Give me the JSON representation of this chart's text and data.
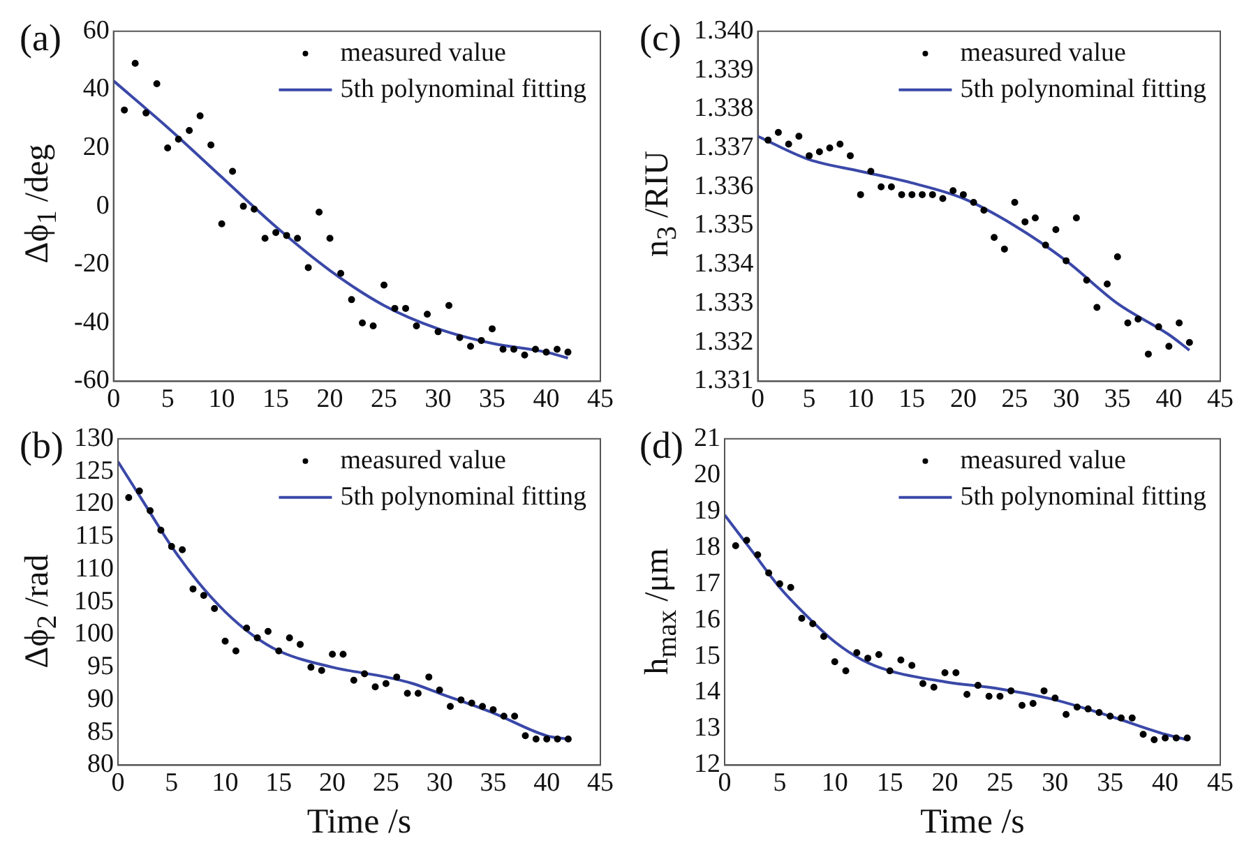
{
  "chart_data": [
    {
      "type": "scatter",
      "title": "(a)",
      "ylabel": "Δϕ$_{1}$ /deg",
      "xlim": [
        0,
        45
      ],
      "xticks": [
        0,
        5,
        10,
        15,
        20,
        25,
        30,
        35,
        40,
        45
      ],
      "ylim": [
        -60,
        60
      ],
      "yticks": [
        -60,
        -40,
        -20,
        0,
        20,
        40,
        60
      ],
      "grid": false,
      "legend": "top right",
      "series": [
        {
          "name": "measured value",
          "type": "scatter",
          "marker": "circle",
          "color": "#000000",
          "x": [
            1,
            2,
            3,
            4,
            5,
            6,
            7,
            8,
            9,
            10,
            11,
            12,
            13,
            14,
            15,
            16,
            17,
            18,
            19,
            20,
            21,
            22,
            23,
            24,
            25,
            26,
            27,
            28,
            29,
            30,
            31,
            32,
            33,
            34,
            35,
            36,
            37,
            38,
            39,
            40,
            41,
            42
          ],
          "values": [
            33,
            49,
            32,
            42,
            20,
            23,
            26,
            31,
            21,
            -6,
            12,
            0,
            -1,
            -11,
            -9,
            -10,
            -11,
            -21,
            -2,
            -11,
            -23,
            -32,
            -40,
            -41,
            -27,
            -35,
            -35,
            -41,
            -37,
            -43,
            -34,
            -45,
            -48,
            -46,
            -42,
            -49,
            -49,
            -51,
            -49,
            -50,
            -49,
            -50
          ]
        },
        {
          "name": "5th polynominal fitting",
          "type": "line",
          "marker": "none",
          "color": "#3a48a8",
          "x": [
            0,
            5,
            10,
            15,
            20,
            25,
            30,
            35,
            40,
            42
          ],
          "values": [
            43,
            27,
            10,
            -7,
            -22,
            -34,
            -42,
            -47,
            -50,
            -52
          ]
        }
      ]
    },
    {
      "type": "scatter",
      "title": "(c)",
      "ylabel": "n$_{3}$ /RIU",
      "xlim": [
        0,
        45
      ],
      "xticks": [
        0,
        5,
        10,
        15,
        20,
        25,
        30,
        35,
        40,
        45
      ],
      "ylim": [
        1.331,
        1.34
      ],
      "yticks": [
        1.331,
        1.332,
        1.333,
        1.334,
        1.335,
        1.336,
        1.337,
        1.338,
        1.339,
        {
          "value": 1.34,
          "label": "1.340"
        }
      ],
      "grid": false,
      "legend": "top right",
      "series": [
        {
          "name": "measured value",
          "type": "scatter",
          "marker": "circle",
          "color": "#000000",
          "x": [
            1,
            2,
            3,
            4,
            5,
            6,
            7,
            8,
            9,
            10,
            11,
            12,
            13,
            14,
            15,
            16,
            17,
            18,
            19,
            20,
            21,
            22,
            23,
            24,
            25,
            26,
            27,
            28,
            29,
            30,
            31,
            32,
            33,
            34,
            35,
            36,
            37,
            38,
            39,
            40,
            41,
            42
          ],
          "values": [
            1.3372,
            1.3374,
            1.3371,
            1.3373,
            1.3368,
            1.3369,
            1.337,
            1.3371,
            1.3368,
            1.3358,
            1.3364,
            1.336,
            1.336,
            1.3358,
            1.3358,
            1.3358,
            1.3358,
            1.3357,
            1.3359,
            1.3358,
            1.3356,
            1.3354,
            1.3347,
            1.3344,
            1.3356,
            1.3351,
            1.3352,
            1.3345,
            1.3349,
            1.3341,
            1.3352,
            1.3336,
            1.3329,
            1.3335,
            1.3342,
            1.3325,
            1.3326,
            1.3317,
            1.3324,
            1.3319,
            1.3325,
            1.332
          ]
        },
        {
          "name": "5th polynominal fitting",
          "type": "line",
          "marker": "none",
          "color": "#3a48a8",
          "x": [
            0,
            5,
            10,
            15,
            20,
            25,
            30,
            35,
            40,
            42
          ],
          "values": [
            1.3373,
            1.3367,
            1.3364,
            1.3361,
            1.3357,
            1.335,
            1.3341,
            1.333,
            1.3322,
            1.3318
          ]
        }
      ]
    },
    {
      "type": "scatter",
      "title": "(b)",
      "xlabel": "Time /s",
      "ylabel": "Δϕ$_{2}$ /rad",
      "xlim": [
        0,
        45
      ],
      "xticks": [
        0,
        5,
        10,
        15,
        20,
        25,
        30,
        35,
        40,
        45
      ],
      "ylim": [
        80,
        130
      ],
      "yticks": [
        80,
        85,
        90,
        95,
        100,
        105,
        110,
        115,
        120,
        125,
        130
      ],
      "grid": false,
      "legend": "top right",
      "series": [
        {
          "name": "measured value",
          "type": "scatter",
          "marker": "circle",
          "color": "#000000",
          "x": [
            1,
            2,
            3,
            4,
            5,
            6,
            7,
            8,
            9,
            10,
            11,
            12,
            13,
            14,
            15,
            16,
            17,
            18,
            19,
            20,
            21,
            22,
            23,
            24,
            25,
            26,
            27,
            28,
            29,
            30,
            31,
            32,
            33,
            34,
            35,
            36,
            37,
            38,
            39,
            40,
            41,
            42
          ],
          "values": [
            121,
            122,
            119,
            116,
            113.5,
            113,
            107,
            106,
            104,
            99,
            97.5,
            101,
            99.5,
            100.5,
            97.5,
            99.5,
            98.5,
            95,
            94.5,
            97,
            97,
            93,
            94,
            92,
            92.5,
            93.5,
            91,
            91,
            93.5,
            91.5,
            89,
            90,
            89.5,
            89,
            88.5,
            87.5,
            87.5,
            84.5,
            84,
            84,
            84,
            84
          ]
        },
        {
          "name": "5th polynominal fitting",
          "type": "line",
          "marker": "none",
          "color": "#3a48a8",
          "x": [
            0,
            2.5,
            5,
            7.5,
            10,
            12.5,
            15,
            20,
            25,
            27.5,
            30,
            35,
            40,
            42
          ],
          "values": [
            126.5,
            120,
            113.5,
            108,
            103.5,
            100,
            97.5,
            95,
            93.5,
            92.5,
            91,
            88,
            84.5,
            84
          ]
        }
      ]
    },
    {
      "type": "scatter",
      "title": "(d)",
      "xlabel": "Time /s",
      "ylabel": "h$_{max}$ /μm",
      "xlim": [
        0,
        45
      ],
      "xticks": [
        0,
        5,
        10,
        15,
        20,
        25,
        30,
        35,
        40,
        45
      ],
      "ylim": [
        12,
        21
      ],
      "yticks": [
        12,
        13,
        14,
        15,
        16,
        17,
        18,
        19,
        20,
        21
      ],
      "grid": false,
      "legend": "top right",
      "series": [
        {
          "name": "measured value",
          "type": "scatter",
          "marker": "circle",
          "color": "#000000",
          "x": [
            1,
            2,
            3,
            4,
            5,
            6,
            7,
            8,
            9,
            10,
            11,
            12,
            13,
            14,
            15,
            16,
            17,
            18,
            19,
            20,
            21,
            22,
            23,
            24,
            25,
            26,
            27,
            28,
            29,
            30,
            31,
            32,
            33,
            34,
            35,
            36,
            37,
            38,
            39,
            40,
            41,
            42
          ],
          "values": [
            18.05,
            18.2,
            17.8,
            17.3,
            17,
            16.9,
            16.05,
            15.9,
            15.55,
            14.85,
            14.6,
            15.1,
            14.95,
            15.05,
            14.6,
            14.9,
            14.75,
            14.25,
            14.15,
            14.55,
            14.55,
            13.95,
            14.2,
            13.9,
            13.9,
            14.05,
            13.65,
            13.7,
            14.05,
            13.85,
            13.4,
            13.6,
            13.55,
            13.45,
            13.35,
            13.3,
            13.3,
            12.85,
            12.7,
            12.75,
            12.75,
            12.75
          ]
        },
        {
          "name": "5th polynominal fitting",
          "type": "line",
          "marker": "none",
          "color": "#3a48a8",
          "x": [
            0,
            2.5,
            5,
            7.5,
            10,
            12.5,
            15,
            20,
            25,
            30,
            35,
            40,
            42
          ],
          "values": [
            18.9,
            17.9,
            16.9,
            16.1,
            15.4,
            14.9,
            14.6,
            14.3,
            14.1,
            13.8,
            13.35,
            12.85,
            12.7
          ]
        }
      ]
    }
  ]
}
